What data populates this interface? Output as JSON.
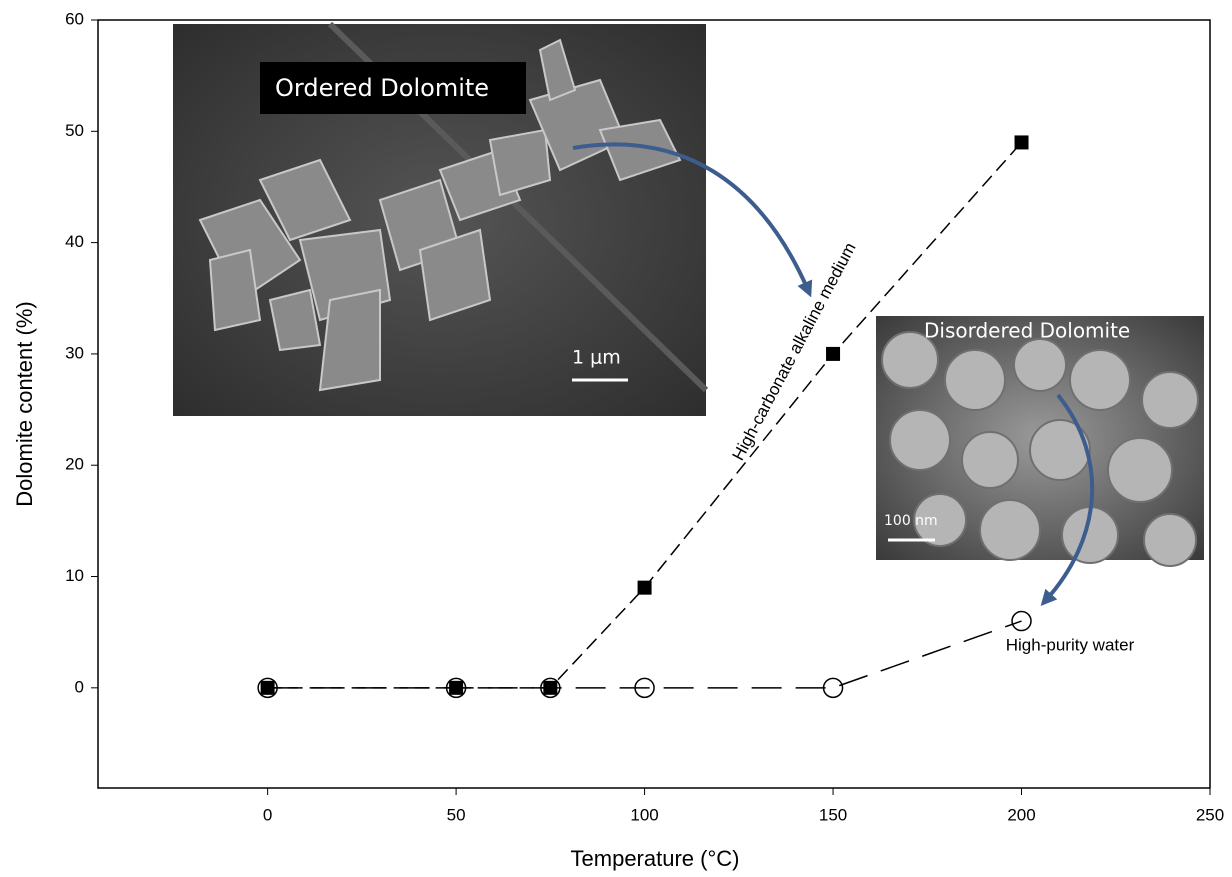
{
  "chart_data": {
    "type": "line",
    "x_label": "Temperature (°C)",
    "y_label": "Dolomite content (%)",
    "annotations": [
      "Ordered Dolomite",
      "1 μm",
      "Disordered Dolomite",
      "100 nm"
    ],
    "xlim": [
      -45,
      250
    ],
    "xticks": [
      0,
      50,
      100,
      150,
      200,
      250
    ],
    "ylim": [
      -9,
      60
    ],
    "yticks": [
      0,
      10,
      20,
      30,
      40,
      50,
      60
    ],
    "series": [
      {
        "name": "High-carbonate alkaline medium",
        "color": "#000000",
        "marker": "square",
        "x": [
          0,
          50,
          75,
          100,
          150,
          200
        ],
        "values": [
          0,
          0,
          0,
          9,
          30,
          49
        ]
      },
      {
        "name": "High-purity water",
        "color": "#000000",
        "marker": "circle",
        "x": [
          0,
          50,
          75,
          100,
          150,
          200
        ],
        "values": [
          0,
          0,
          0,
          0,
          0,
          6
        ]
      }
    ]
  }
}
